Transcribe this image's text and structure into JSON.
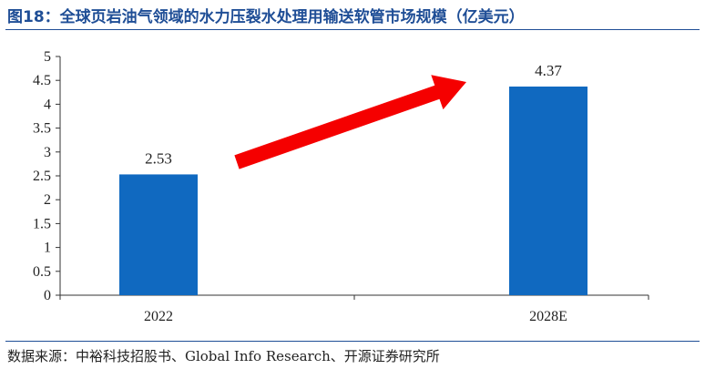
{
  "title": "图18：全球页岩油气领域的水力压裂水处理用输送软管市场规模（亿美元）",
  "source": "数据来源：中裕科技招股书、Global Info Research、开源证券研究所",
  "chart_data": {
    "type": "bar",
    "categories": [
      "2022",
      "2028E"
    ],
    "values": [
      2.53,
      4.37
    ],
    "value_labels": [
      "2.53",
      "4.37"
    ],
    "ylim": [
      0,
      5
    ],
    "yticks": [
      "0",
      "0.5",
      "1",
      "1.5",
      "2",
      "2.5",
      "3",
      "3.5",
      "4",
      "4.5",
      "5"
    ],
    "bar_color": "#1069c0",
    "arrow_color": "#f50000",
    "grid": false,
    "legend": "none"
  }
}
